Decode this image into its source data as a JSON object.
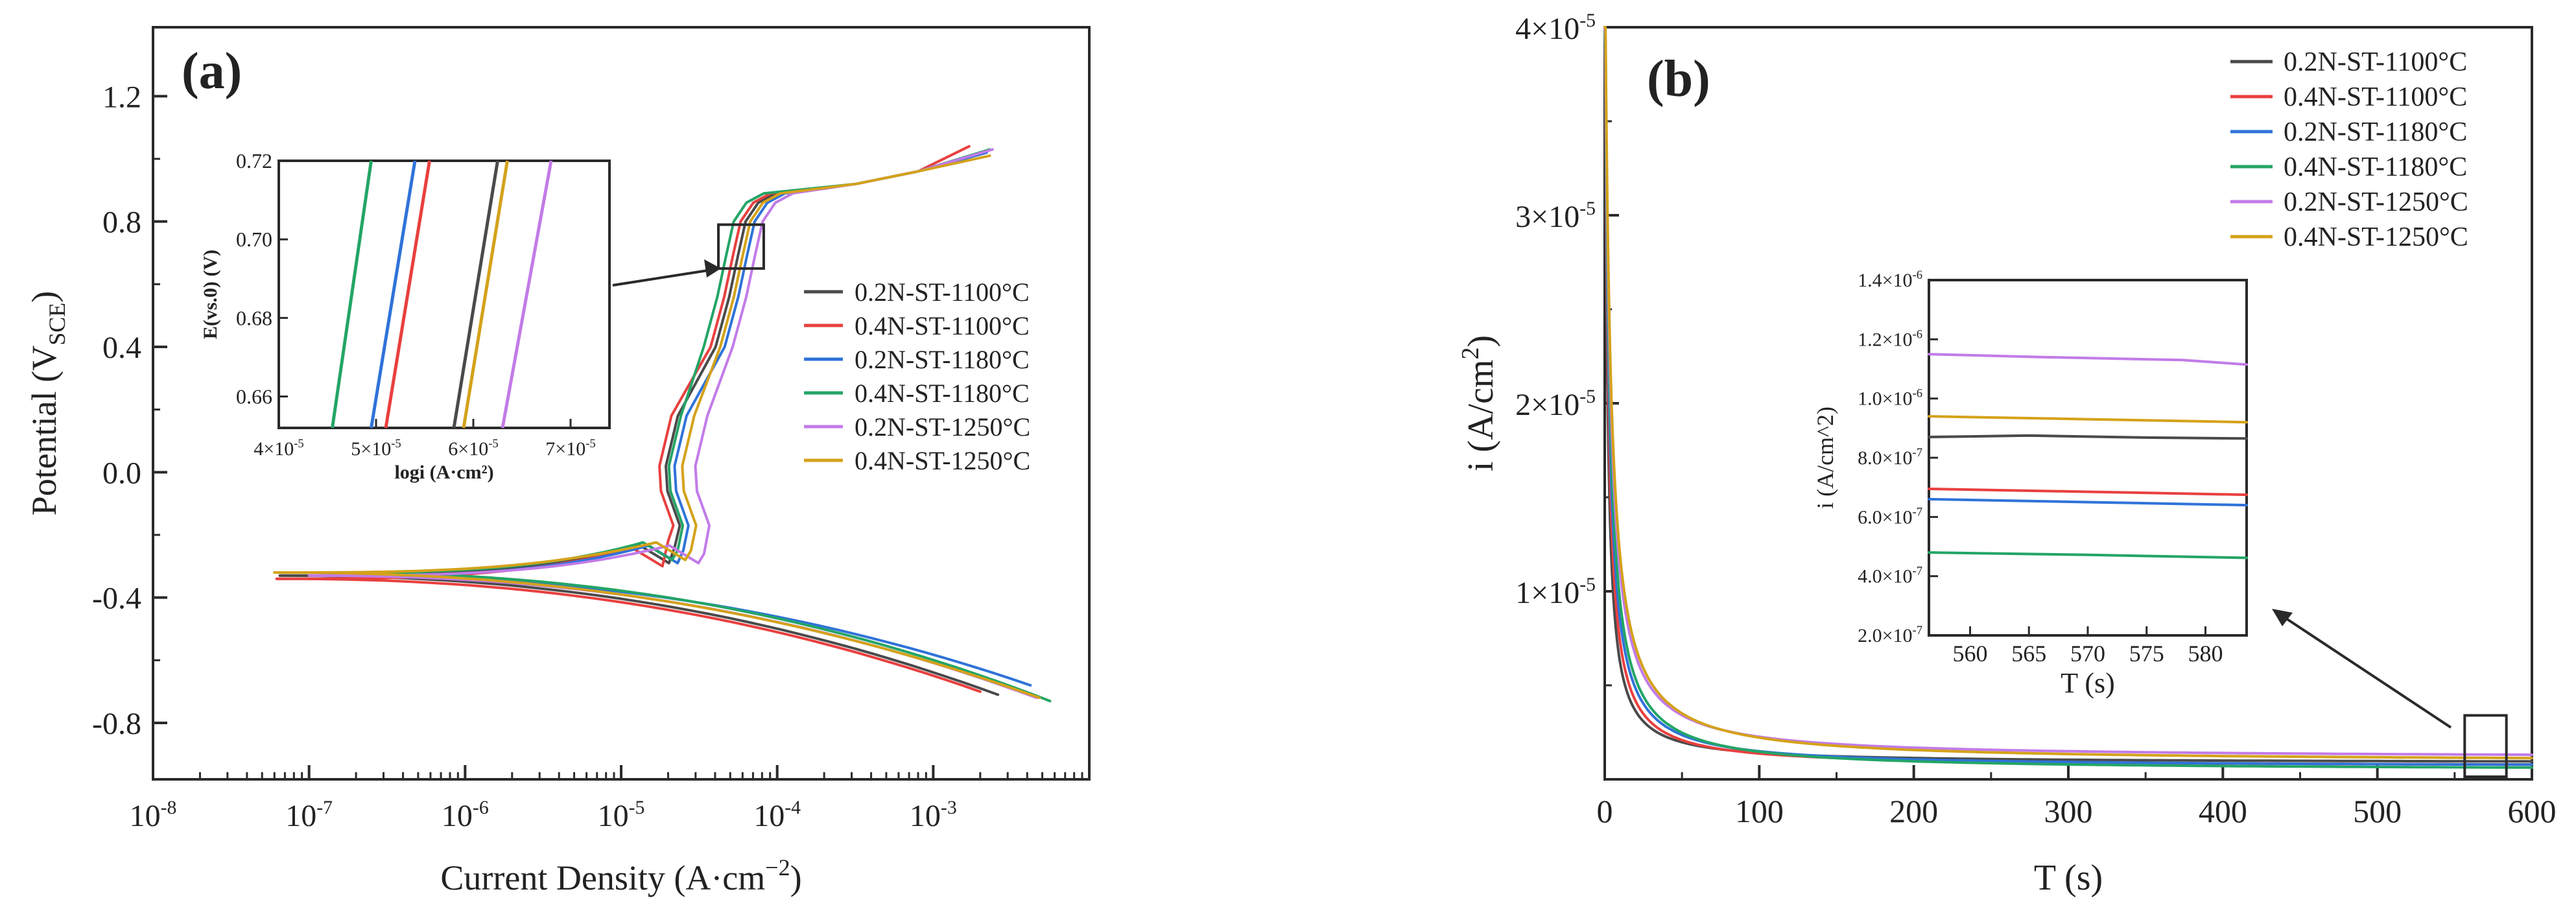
{
  "colors": {
    "0.2N-ST-1100°C": "#4a4a4a",
    "0.4N-ST-1100°C": "#e8403f",
    "0.2N-ST-1180°C": "#2f73d9",
    "0.4N-ST-1180°C": "#23a566",
    "0.2N-ST-1250°C": "#c27be8",
    "0.4N-ST-1250°C": "#d4a21a"
  },
  "chart_data": [
    {
      "panel": "(a)",
      "type": "line",
      "xscale": "log",
      "xlabel": "Current Density (A·cm−2)",
      "ylabel": "Potential (VSCE)",
      "xlim": [
        1e-08,
        0.01
      ],
      "ylim": [
        -0.98,
        1.42
      ],
      "xticks": [
        {
          "base": "10",
          "exp": "-8"
        },
        {
          "base": "10",
          "exp": "-7"
        },
        {
          "base": "10",
          "exp": "-6"
        },
        {
          "base": "10",
          "exp": "-5"
        },
        {
          "base": "10",
          "exp": "-4"
        },
        {
          "base": "10",
          "exp": "-3"
        }
      ],
      "yticks": [
        "1.2",
        "0.8",
        "0.4",
        "0.0",
        "-0.4",
        "-0.8"
      ],
      "ytick_values": [
        1.2,
        0.8,
        0.4,
        0.0,
        -0.4,
        -0.8
      ],
      "legend": [
        "0.2N-ST-1100°C",
        "0.4N-ST-1100°C",
        "0.2N-ST-1180°C",
        "0.4N-ST-1180°C",
        "0.2N-ST-1250°C",
        "0.4N-ST-1250°C"
      ],
      "series": [
        {
          "name": "0.2N-ST-1100°C",
          "ecorr": -0.33,
          "icorr_start": 6.5e-08,
          "i_pass": 5.6e-05,
          "i_act": 2.2e-05,
          "v_act": -0.24,
          "end": [
            0.0026,
            -0.71
          ],
          "top": [
            0.0022,
            1.02
          ]
        },
        {
          "name": "0.4N-ST-1100°C",
          "ecorr": -0.34,
          "icorr_start": 6.2e-08,
          "i_pass": 5.2e-05,
          "i_act": 2e-05,
          "v_act": -0.22,
          "end": [
            0.002,
            -0.7
          ],
          "top": [
            0.0017,
            1.04
          ]
        },
        {
          "name": "0.2N-ST-1180°C",
          "ecorr": -0.33,
          "icorr_start": 1.3e-07,
          "i_pass": 6.4e-05,
          "i_act": 2.5e-05,
          "v_act": -0.25,
          "end": [
            0.0042,
            -0.68
          ],
          "top": [
            0.0022,
            1.02
          ]
        },
        {
          "name": "0.4N-ST-1180°C",
          "ecorr": -0.32,
          "icorr_start": 1.2e-07,
          "i_pass": 4.7e-05,
          "i_act": 2.3e-05,
          "v_act": -0.25,
          "end": [
            0.0056,
            -0.73
          ],
          "top": [
            0.0023,
            1.03
          ]
        },
        {
          "name": "0.2N-ST-1250°C",
          "ecorr": -0.33,
          "icorr_start": 1e-07,
          "i_pass": 7.2e-05,
          "i_act": 3.4e-05,
          "v_act": -0.26,
          "end": [
            0.0046,
            -0.72
          ],
          "top": [
            0.0024,
            1.03
          ]
        },
        {
          "name": "0.4N-ST-1250°C",
          "ecorr": -0.32,
          "icorr_start": 6e-08,
          "i_pass": 6e-05,
          "i_act": 2.8e-05,
          "v_act": -0.25,
          "end": [
            0.0048,
            -0.72
          ],
          "top": [
            0.0023,
            1.01
          ]
        }
      ],
      "inset": {
        "type": "line",
        "xlabel": "logi (A·cm²)",
        "ylabel": "E(vs.0) (V)",
        "xlim": [
          4e-05,
          7.4e-05
        ],
        "ylim": [
          0.652,
          0.72
        ],
        "xticks": [
          {
            "m": "4",
            "base": "10",
            "exp": "-5",
            "v": 4e-05
          },
          {
            "m": "5",
            "base": "10",
            "exp": "-5",
            "v": 5e-05
          },
          {
            "m": "6",
            "base": "10",
            "exp": "-5",
            "v": 6e-05
          },
          {
            "m": "7",
            "base": "10",
            "exp": "-5",
            "v": 7e-05
          }
        ],
        "yticks": [
          "0.72",
          "0.70",
          "0.68",
          "0.66"
        ],
        "ytick_values": [
          0.72,
          0.7,
          0.68,
          0.66
        ],
        "series": [
          {
            "name": "0.2N-ST-1100°C",
            "x0": 5.8e-05,
            "x1": 6.25e-05
          },
          {
            "name": "0.4N-ST-1100°C",
            "x0": 5.1e-05,
            "x1": 5.55e-05
          },
          {
            "name": "0.2N-ST-1180°C",
            "x0": 4.95e-05,
            "x1": 5.4e-05
          },
          {
            "name": "0.4N-ST-1180°C",
            "x0": 4.55e-05,
            "x1": 4.95e-05
          },
          {
            "name": "0.2N-ST-1250°C",
            "x0": 6.3e-05,
            "x1": 6.8e-05
          },
          {
            "name": "0.4N-ST-1250°C",
            "x0": 5.9e-05,
            "x1": 6.35e-05
          }
        ]
      }
    },
    {
      "panel": "(b)",
      "type": "line",
      "xlabel": "T (s)",
      "ylabel": "i (A/cm2)",
      "xlim": [
        0,
        600
      ],
      "ylim": [
        0,
        4e-05
      ],
      "xticks": [
        "0",
        "100",
        "200",
        "300",
        "400",
        "500",
        "600"
      ],
      "xtick_values": [
        0,
        100,
        200,
        300,
        400,
        500,
        600
      ],
      "yticks": [
        {
          "m": "1",
          "exp": "-5",
          "v": 1e-05
        },
        {
          "m": "2",
          "exp": "-5",
          "v": 2e-05
        },
        {
          "m": "3",
          "exp": "-5",
          "v": 3e-05
        },
        {
          "m": "4",
          "exp": "-5",
          "v": 4e-05
        }
      ],
      "legend": [
        "0.2N-ST-1100°C",
        "0.4N-ST-1100°C",
        "0.2N-ST-1180°C",
        "0.4N-ST-1180°C",
        "0.2N-ST-1250°C",
        "0.4N-ST-1250°C"
      ],
      "series": [
        {
          "name": "0.2N-ST-1100°C",
          "i_final": 8.7e-07
        },
        {
          "name": "0.4N-ST-1100°C",
          "i_final": 6.8e-07
        },
        {
          "name": "0.2N-ST-1180°C",
          "i_final": 6.5e-07
        },
        {
          "name": "0.4N-ST-1180°C",
          "i_final": 4.7e-07
        },
        {
          "name": "0.2N-ST-1250°C",
          "i_final": 1.13e-06
        },
        {
          "name": "0.4N-ST-1250°C",
          "i_final": 9.3e-07
        }
      ],
      "inset": {
        "type": "line",
        "xlabel": "T (s)",
        "ylabel": "i (A/cm^2)",
        "xlim": [
          556.5,
          583.5
        ],
        "ylim": [
          2e-07,
          1.4e-06
        ],
        "xticks": [
          "560",
          "565",
          "570",
          "575",
          "580"
        ],
        "xtick_values": [
          560,
          565,
          570,
          575,
          580
        ],
        "yticks": [
          {
            "m": "1.4",
            "exp": "-6",
            "v": 1.4e-06
          },
          {
            "m": "1.2",
            "exp": "-6",
            "v": 1.2e-06
          },
          {
            "m": "1.0",
            "exp": "-6",
            "v": 1e-06
          },
          {
            "m": "8.0",
            "exp": "-7",
            "v": 8e-07
          },
          {
            "m": "6.0",
            "exp": "-7",
            "v": 6e-07
          },
          {
            "m": "4.0",
            "exp": "-7",
            "v": 4e-07
          },
          {
            "m": "2.0",
            "exp": "-7",
            "v": 2e-07
          }
        ],
        "series": [
          {
            "name": "0.2N-ST-1100°C",
            "values": [
              [
                556.5,
                8.7e-07
              ],
              [
                565,
                8.75e-07
              ],
              [
                575,
                8.68e-07
              ],
              [
                583.5,
                8.65e-07
              ]
            ]
          },
          {
            "name": "0.4N-ST-1100°C",
            "values": [
              [
                556.5,
                6.95e-07
              ],
              [
                570,
                6.85e-07
              ],
              [
                583.5,
                6.75e-07
              ]
            ]
          },
          {
            "name": "0.2N-ST-1180°C",
            "values": [
              [
                556.5,
                6.6e-07
              ],
              [
                570,
                6.5e-07
              ],
              [
                583.5,
                6.4e-07
              ]
            ]
          },
          {
            "name": "0.4N-ST-1180°C",
            "values": [
              [
                556.5,
                4.8e-07
              ],
              [
                570,
                4.72e-07
              ],
              [
                583.5,
                4.62e-07
              ]
            ]
          },
          {
            "name": "0.2N-ST-1250°C",
            "values": [
              [
                556.5,
                1.15e-06
              ],
              [
                566,
                1.14e-06
              ],
              [
                578,
                1.13e-06
              ],
              [
                583.5,
                1.115e-06
              ]
            ]
          },
          {
            "name": "0.4N-ST-1250°C",
            "values": [
              [
                556.5,
                9.4e-07
              ],
              [
                570,
                9.3e-07
              ],
              [
                583.5,
                9.2e-07
              ]
            ]
          }
        ]
      }
    }
  ]
}
